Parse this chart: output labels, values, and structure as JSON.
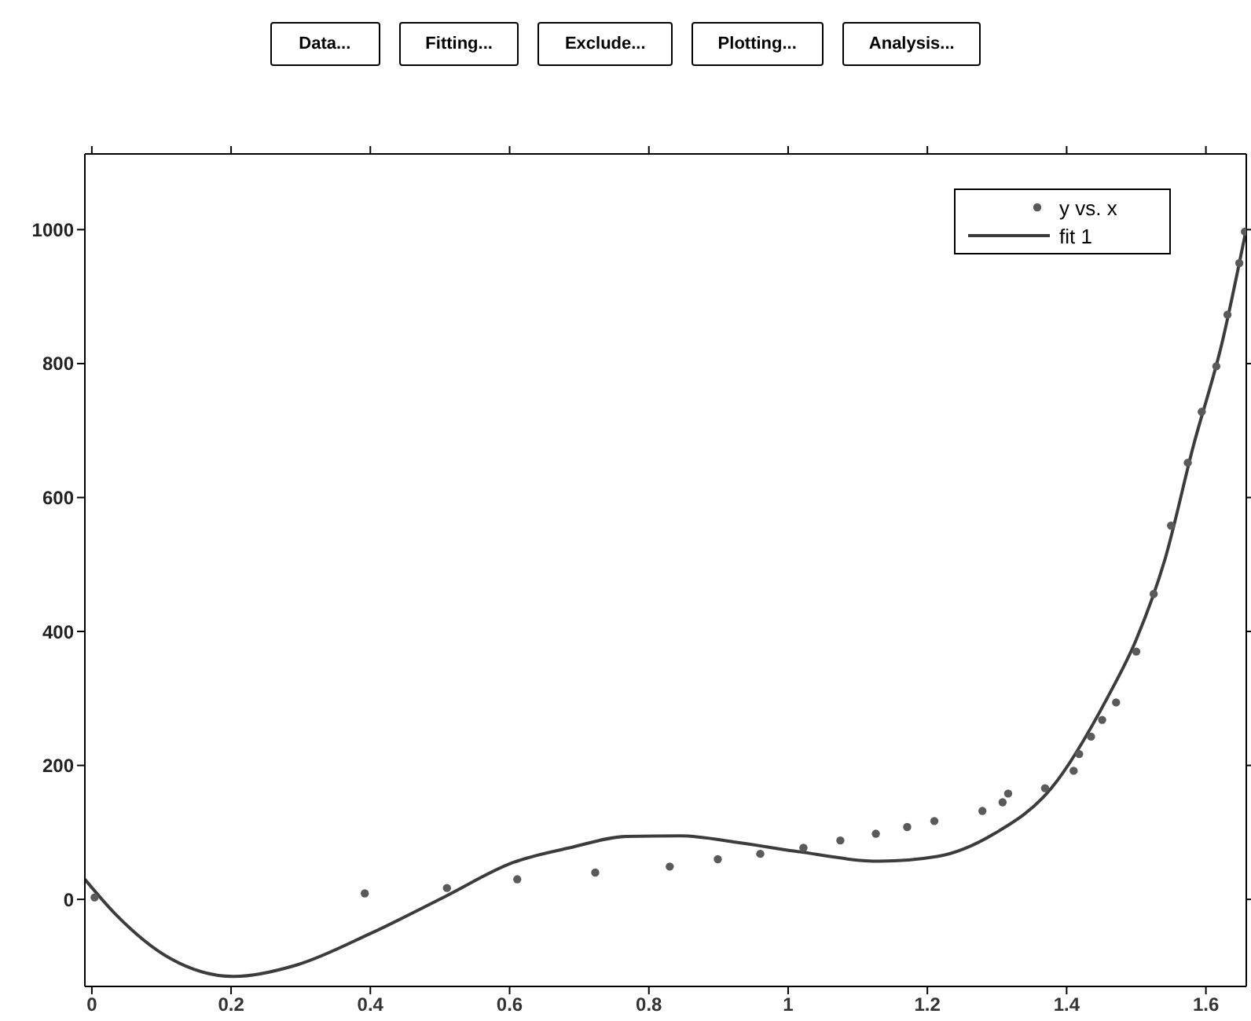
{
  "chart_data": {
    "type": "scatter",
    "annotations": [
      "Data...",
      "Fitting...",
      "Exclude...",
      "Plotting...",
      "Analysis..."
    ],
    "xlim": [
      -0.01,
      1.658
    ],
    "ylim": [
      -130,
      1113
    ],
    "xticks": [
      0,
      0.2,
      0.4,
      0.6,
      0.8,
      1,
      1.2,
      1.4,
      1.6
    ],
    "yticks": [
      0,
      200,
      400,
      600,
      800,
      1000
    ],
    "legend": "top right",
    "series": [
      {
        "name": "y vs. x",
        "marker": "circle",
        "color": "#5a5a5a",
        "x": [
          0.004,
          0.392,
          0.51,
          0.611,
          0.723,
          0.83,
          0.899,
          0.96,
          1.022,
          1.075,
          1.126,
          1.171,
          1.21,
          1.279,
          1.308,
          1.316,
          1.369,
          1.41,
          1.418,
          1.435,
          1.451,
          1.471,
          1.5,
          1.525,
          1.55,
          1.574,
          1.594,
          1.615,
          1.631,
          1.648,
          1.656
        ],
        "values": [
          3,
          9,
          17,
          30,
          40,
          49,
          60,
          68,
          77,
          88,
          98,
          108,
          117,
          132,
          145,
          158,
          166,
          192,
          217,
          243,
          268,
          294,
          370,
          456,
          558,
          652,
          728,
          796,
          873,
          950,
          997
        ]
      },
      {
        "name": "fit 1",
        "type": "line",
        "color": "#3c3c3c",
        "line_style": "solid",
        "x": [
          -0.01,
          0.033,
          0.114,
          0.204,
          0.294,
          0.4,
          0.507,
          0.605,
          0.686,
          0.768,
          0.846,
          0.928,
          1.01,
          1.132,
          1.214,
          1.296,
          1.378,
          1.459,
          1.5,
          1.541,
          1.582,
          1.623,
          1.658
        ],
        "values": [
          30,
          -21,
          -89,
          -115,
          -98,
          -51,
          4,
          55,
          77,
          94,
          95,
          85,
          72,
          57,
          64,
          98,
          166,
          302,
          388,
          507,
          677,
          830,
          1001
        ]
      }
    ]
  }
}
